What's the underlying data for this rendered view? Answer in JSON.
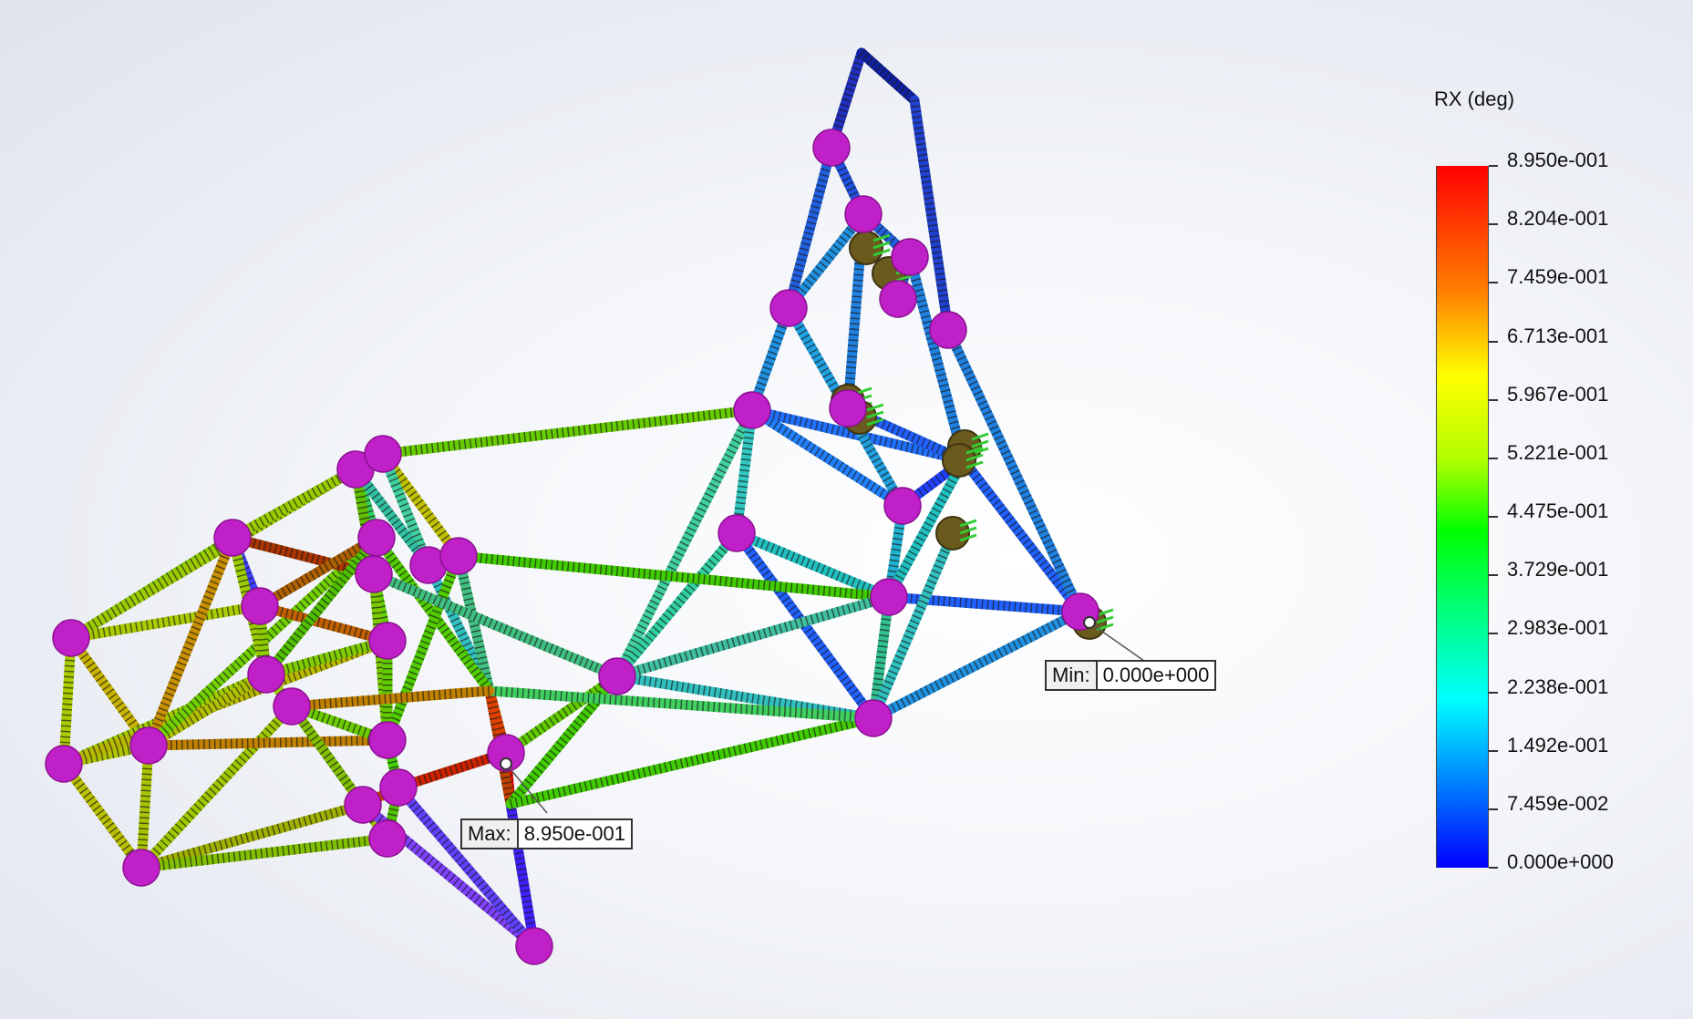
{
  "legend": {
    "title": "RX (deg)",
    "ticks": [
      "8.950e-001",
      "8.204e-001",
      "7.459e-001",
      "6.713e-001",
      "5.967e-001",
      "5.221e-001",
      "4.475e-001",
      "3.729e-001",
      "2.983e-001",
      "2.238e-001",
      "1.492e-001",
      "7.459e-002",
      "0.000e+000"
    ]
  },
  "probes": {
    "min": {
      "label": "Min:",
      "value": "0.000e+000"
    },
    "max": {
      "label": "Max:",
      "value": "8.950e-001"
    }
  },
  "colors": {
    "joint": "#c020c8",
    "fixture": "#6b5a1e",
    "load_arrow": "#33cc33"
  }
}
